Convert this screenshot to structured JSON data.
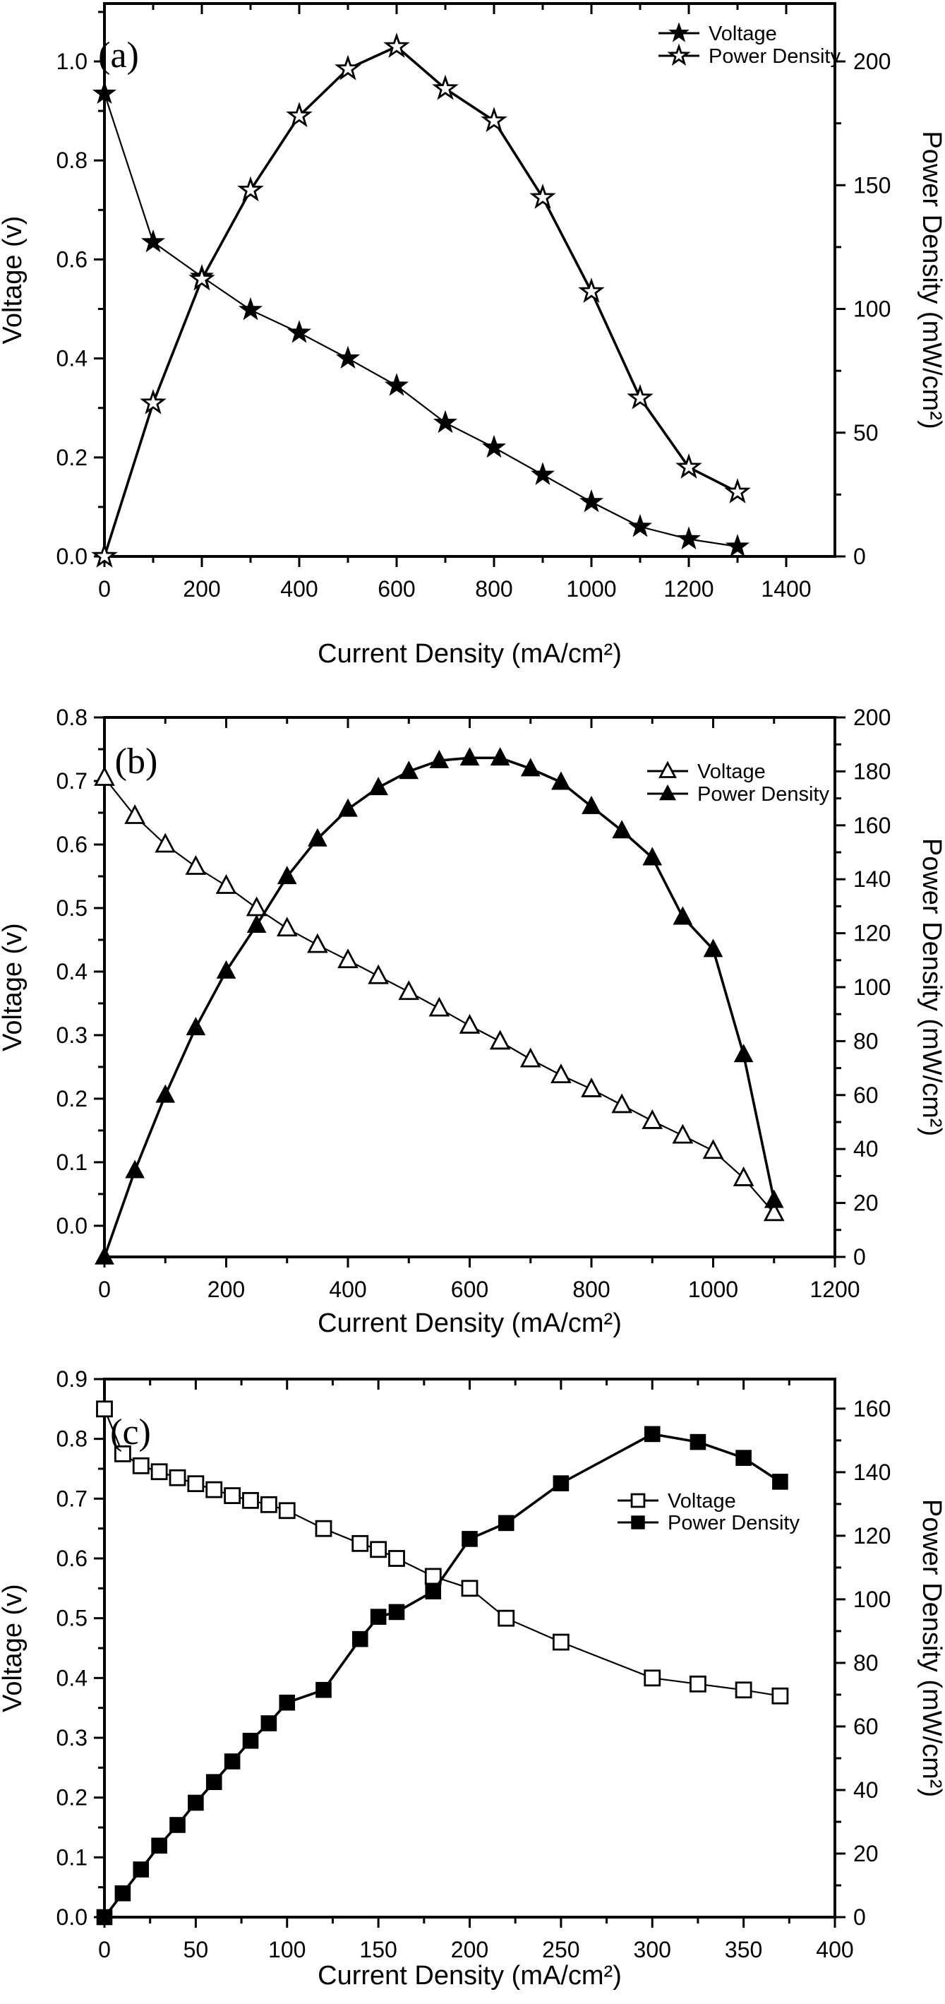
{
  "figure": {
    "background": "#ffffff",
    "ink_color": "#000000",
    "description_titles": {
      "xlabel": "Current Density (mA/cm²)",
      "ylabel_left": "Voltage (v)",
      "ylabel_right": "Power Density (mW/cm²)"
    }
  },
  "chart_data": [
    {
      "type": "line",
      "panel_label": "(a)",
      "xlabel": "Current Density (mA/cm²)",
      "ylabel_left": "Voltage (v)",
      "ylabel_right": "Power Density (mW/cm²)",
      "xlim": [
        0,
        1500
      ],
      "x_ticks": [
        "0",
        "200",
        "400",
        "600",
        "800",
        "1000",
        "1200",
        "1400"
      ],
      "x_minor_step": 100,
      "ylim_left": [
        0,
        1.117
      ],
      "left_ticks": [
        "0.0",
        "0.2",
        "0.4",
        "0.6",
        "0.8",
        "1.0"
      ],
      "left_minor_step": 0.1,
      "ylim_right": [
        0,
        223.4
      ],
      "right_ticks": [
        "0",
        "50",
        "100",
        "150",
        "200"
      ],
      "right_minor_step": 25,
      "grid": false,
      "legend_position": "top-right-inside",
      "legend": [
        {
          "label": "Voltage",
          "marker": "star-filled"
        },
        {
          "label": "Power Density",
          "marker": "star-open"
        }
      ],
      "series": [
        {
          "name": "Voltage",
          "axis": "left",
          "marker": "star-filled",
          "x": [
            0,
            100,
            200,
            300,
            400,
            500,
            600,
            700,
            800,
            900,
            1000,
            1100,
            1200,
            1300
          ],
          "y": [
            0.935,
            0.635,
            0.565,
            0.498,
            0.452,
            0.4,
            0.345,
            0.27,
            0.22,
            0.165,
            0.11,
            0.06,
            0.035,
            0.02
          ]
        },
        {
          "name": "Power Density",
          "axis": "right",
          "marker": "star-open",
          "x": [
            0,
            100,
            200,
            300,
            400,
            500,
            600,
            700,
            800,
            900,
            1000,
            1100,
            1200,
            1300
          ],
          "y": [
            0,
            62,
            112,
            148,
            178,
            197,
            206,
            189,
            176,
            145,
            107,
            64,
            36,
            26
          ]
        }
      ]
    },
    {
      "type": "line",
      "panel_label": "(b)",
      "xlabel": "Current Density (mA/cm²)",
      "ylabel_left": "Voltage (v)",
      "ylabel_right": "Power Density (mW/cm²)",
      "xlim": [
        0,
        1200
      ],
      "x_ticks": [
        "0",
        "200",
        "400",
        "600",
        "800",
        "1000",
        "1200"
      ],
      "x_minor_step": 100,
      "ylim_left": [
        -0.049,
        0.8
      ],
      "left_ticks": [
        "0.0",
        "0.1",
        "0.2",
        "0.3",
        "0.4",
        "0.5",
        "0.6",
        "0.7",
        "0.8"
      ],
      "left_minor_step": 0.05,
      "ylim_right": [
        0,
        200
      ],
      "right_ticks": [
        "0",
        "20",
        "40",
        "60",
        "80",
        "100",
        "120",
        "140",
        "160",
        "180",
        "200"
      ],
      "right_minor_step": 10,
      "grid": false,
      "legend_position": "middle-right-inside",
      "legend": [
        {
          "label": "Voltage",
          "marker": "triangle-open"
        },
        {
          "label": "Power Density",
          "marker": "triangle-filled"
        }
      ],
      "series": [
        {
          "name": "Voltage",
          "axis": "left",
          "marker": "triangle-open",
          "x": [
            0,
            50,
            100,
            150,
            200,
            250,
            300,
            350,
            400,
            450,
            500,
            550,
            600,
            650,
            700,
            750,
            800,
            850,
            900,
            950,
            1000,
            1050,
            1100
          ],
          "y": [
            0.705,
            0.645,
            0.6,
            0.565,
            0.535,
            0.5,
            0.468,
            0.442,
            0.418,
            0.393,
            0.368,
            0.342,
            0.315,
            0.29,
            0.262,
            0.237,
            0.215,
            0.19,
            0.165,
            0.142,
            0.118,
            0.075,
            0.02
          ]
        },
        {
          "name": "Power Density",
          "axis": "right",
          "marker": "triangle-filled",
          "x": [
            0,
            50,
            100,
            150,
            200,
            250,
            300,
            350,
            400,
            450,
            500,
            550,
            600,
            650,
            700,
            750,
            800,
            850,
            900,
            950,
            1000,
            1050,
            1100
          ],
          "y": [
            0,
            32,
            60,
            85,
            106,
            123,
            141,
            155,
            166,
            174,
            180,
            184,
            185,
            185,
            181,
            176,
            167,
            158,
            148,
            126,
            114,
            75,
            21
          ]
        }
      ]
    },
    {
      "type": "line",
      "panel_label": "(c)",
      "xlabel": "Current Density (mA/cm²)",
      "ylabel_left": "Voltage (v)",
      "ylabel_right": "Power Density (mW/cm²)",
      "xlim": [
        0,
        400
      ],
      "x_ticks": [
        "0",
        "50",
        "100",
        "150",
        "200",
        "250",
        "300",
        "350",
        "400"
      ],
      "x_minor_step": 25,
      "ylim_left": [
        0,
        0.9
      ],
      "left_ticks": [
        "0.0",
        "0.1",
        "0.2",
        "0.3",
        "0.4",
        "0.5",
        "0.6",
        "0.7",
        "0.8",
        "0.9"
      ],
      "left_minor_step": 0.05,
      "ylim_right": [
        0,
        169.3
      ],
      "right_ticks": [
        "0",
        "20",
        "40",
        "60",
        "80",
        "100",
        "120",
        "140",
        "160"
      ],
      "right_minor_step": 10,
      "grid": false,
      "legend_position": "middle-inside",
      "legend": [
        {
          "label": "Voltage",
          "marker": "square-open"
        },
        {
          "label": "Power Density",
          "marker": "square-filled"
        }
      ],
      "series": [
        {
          "name": "Voltage",
          "axis": "left",
          "marker": "square-open",
          "x": [
            0,
            10,
            20,
            30,
            40,
            50,
            60,
            70,
            80,
            90,
            100,
            120,
            140,
            150,
            160,
            180,
            200,
            220,
            250,
            300,
            325,
            350,
            370
          ],
          "y": [
            0.85,
            0.775,
            0.755,
            0.745,
            0.735,
            0.725,
            0.715,
            0.705,
            0.697,
            0.69,
            0.68,
            0.65,
            0.625,
            0.615,
            0.6,
            0.57,
            0.55,
            0.5,
            0.46,
            0.4,
            0.39,
            0.38,
            0.37
          ]
        },
        {
          "name": "Power Density",
          "axis": "right",
          "marker": "square-filled",
          "x": [
            0,
            10,
            20,
            30,
            40,
            50,
            60,
            70,
            80,
            90,
            100,
            120,
            140,
            150,
            160,
            180,
            200,
            220,
            250,
            300,
            325,
            350,
            370
          ],
          "y": [
            0,
            7.5,
            15,
            22.5,
            29,
            36,
            42.5,
            49,
            55.5,
            61,
            67.5,
            71.5,
            87.5,
            94.5,
            96,
            102.5,
            119,
            124,
            136.5,
            152,
            149.5,
            144.5,
            137
          ]
        }
      ]
    }
  ]
}
